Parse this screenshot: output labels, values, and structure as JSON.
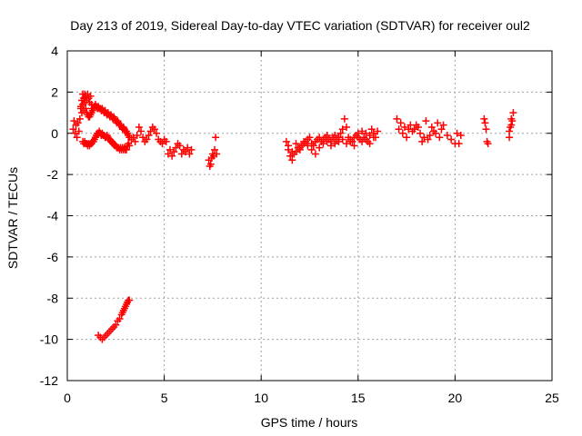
{
  "chart_data": {
    "type": "scatter",
    "title": "Day 213 of 2019, Sidereal Day-to-day VTEC variation (SDTVAR) for receiver oul2",
    "xlabel": "GPS time / hours",
    "ylabel": "SDTVAR / TECUs",
    "xlim": [
      0,
      25
    ],
    "ylim": [
      -12,
      4
    ],
    "xticks": [
      0,
      5,
      10,
      15,
      20,
      25
    ],
    "yticks": [
      4,
      2,
      0,
      -2,
      -4,
      -6,
      -8,
      -10,
      -12
    ],
    "grid": true,
    "marker": "+",
    "color": "#ff0000",
    "series": [
      {
        "name": "SDTVAR",
        "x": [
          0.3,
          0.35,
          0.4,
          0.45,
          0.5,
          0.55,
          0.6,
          0.65,
          0.7,
          0.75,
          0.8,
          0.85,
          0.9,
          0.95,
          1.0,
          1.05,
          1.1,
          1.15,
          1.2,
          1.25,
          1.3,
          0.7,
          0.75,
          0.8,
          0.85,
          0.9,
          0.95,
          1.0,
          1.05,
          1.1,
          1.15,
          1.2,
          1.25,
          1.3,
          1.35,
          1.4,
          1.45,
          1.5,
          1.55,
          1.6,
          1.65,
          1.7,
          1.75,
          1.8,
          1.85,
          1.9,
          1.95,
          2.0,
          2.05,
          2.1,
          2.15,
          2.2,
          2.25,
          2.3,
          2.35,
          2.4,
          2.45,
          2.5,
          2.55,
          2.6,
          2.65,
          2.7,
          2.75,
          2.8,
          2.85,
          2.9,
          2.95,
          3.0,
          3.05,
          3.1,
          3.15,
          3.2,
          0.8,
          0.85,
          0.9,
          0.95,
          1.0,
          1.05,
          1.1,
          1.15,
          1.2,
          1.25,
          1.3,
          1.35,
          1.4,
          1.45,
          1.5,
          1.55,
          1.6,
          1.65,
          1.7,
          1.75,
          1.8,
          1.85,
          1.9,
          1.95,
          2.0,
          2.05,
          2.1,
          2.15,
          2.2,
          2.25,
          2.3,
          2.35,
          2.4,
          2.45,
          2.5,
          2.55,
          2.6,
          2.65,
          2.7,
          2.75,
          2.8,
          2.85,
          2.9,
          2.95,
          3.0,
          3.05,
          3.1,
          3.15,
          3.2,
          3.3,
          3.4,
          3.5,
          3.6,
          3.7,
          3.8,
          3.9,
          4.0,
          4.1,
          4.2,
          4.3,
          4.4,
          4.5,
          4.6,
          4.7,
          4.8,
          4.9,
          5.0,
          5.1,
          5.2,
          5.3,
          5.4,
          5.5,
          5.6,
          5.7,
          5.8,
          5.9,
          6.0,
          6.1,
          6.2,
          6.3,
          6.4,
          7.3,
          7.35,
          7.4,
          7.45,
          7.5,
          7.55,
          7.6,
          7.65,
          7.7,
          1.6,
          1.7,
          1.8,
          1.9,
          2.0,
          2.1,
          2.2,
          2.3,
          2.4,
          2.5,
          2.6,
          2.7,
          2.8,
          2.85,
          2.9,
          2.95,
          3.0,
          3.05,
          3.1,
          3.15,
          3.2,
          11.3,
          11.4,
          11.5,
          11.6,
          11.7,
          11.8,
          11.9,
          12.0,
          12.1,
          12.2,
          12.3,
          12.4,
          12.5,
          12.6,
          12.7,
          12.8,
          12.9,
          13.0,
          13.1,
          13.2,
          13.3,
          13.4,
          13.5,
          13.6,
          13.7,
          13.8,
          13.9,
          14.0,
          14.1,
          14.2,
          14.3,
          14.4,
          14.5,
          14.6,
          14.7,
          14.8,
          14.9,
          15.0,
          15.1,
          15.2,
          15.3,
          15.4,
          15.5,
          15.6,
          15.7,
          15.8,
          15.9,
          16.0,
          11.4,
          11.6,
          11.8,
          12.0,
          12.2,
          12.4,
          12.6,
          12.8,
          13.0,
          13.2,
          13.4,
          13.6,
          13.8,
          14.0,
          14.2,
          14.4,
          14.6,
          14.8,
          15.0,
          15.2,
          15.4,
          15.6,
          15.8,
          17.0,
          17.2,
          17.4,
          17.6,
          17.8,
          18.0,
          18.2,
          18.4,
          18.6,
          18.8,
          19.0,
          19.2,
          19.4,
          19.6,
          19.8,
          20.0,
          20.1,
          20.2,
          20.3,
          17.1,
          17.3,
          17.5,
          17.7,
          17.9,
          18.1,
          18.3,
          18.5,
          18.7,
          18.9,
          19.1,
          19.3,
          21.5,
          21.55,
          21.6,
          21.65,
          21.7,
          22.8,
          22.85,
          22.9,
          22.95,
          23.0,
          22.8,
          22.9
        ],
        "y": [
          0.2,
          0.6,
          0.0,
          0.4,
          -0.2,
          0.5,
          0.1,
          0.7,
          1.2,
          1.6,
          1.9,
          1.7,
          1.9,
          1.8,
          1.6,
          1.9,
          1.7,
          1.5,
          1.8,
          1.4,
          1.2,
          1.3,
          1.0,
          1.4,
          1.1,
          1.5,
          1.2,
          1.0,
          0.9,
          0.8,
          0.8,
          0.9,
          1.0,
          1.1,
          1.2,
          1.3,
          1.4,
          1.3,
          1.2,
          1.3,
          1.2,
          1.2,
          1.1,
          1.2,
          1.1,
          1.0,
          1.1,
          1.0,
          0.9,
          1.0,
          0.9,
          0.8,
          0.9,
          0.8,
          0.7,
          0.8,
          0.7,
          0.6,
          0.5,
          0.6,
          0.5,
          0.4,
          0.4,
          0.3,
          0.2,
          0.3,
          0.2,
          0.1,
          0.1,
          0.0,
          -0.1,
          -0.2,
          -0.4,
          -0.5,
          -0.4,
          -0.5,
          -0.5,
          -0.6,
          -0.5,
          -0.6,
          -0.5,
          -0.5,
          -0.4,
          -0.4,
          -0.3,
          -0.2,
          -0.1,
          0.0,
          0.0,
          0.1,
          0.0,
          -0.1,
          0.0,
          -0.1,
          -0.1,
          -0.2,
          -0.2,
          -0.1,
          -0.2,
          -0.3,
          -0.3,
          -0.4,
          -0.4,
          -0.5,
          -0.5,
          -0.6,
          -0.6,
          -0.7,
          -0.7,
          -0.7,
          -0.8,
          -0.7,
          -0.8,
          -0.7,
          -0.8,
          -0.7,
          -0.8,
          -0.8,
          -0.6,
          -0.5,
          -0.6,
          -0.3,
          -0.2,
          -0.4,
          -0.1,
          0.3,
          0.1,
          -0.2,
          -0.4,
          -0.3,
          -0.1,
          0.1,
          0.3,
          0.2,
          0.0,
          -0.3,
          -0.4,
          -0.5,
          -0.3,
          -0.4,
          -1.0,
          -0.8,
          -1.1,
          -0.9,
          -0.7,
          -0.5,
          -0.6,
          -1.0,
          -0.8,
          -0.9,
          -0.7,
          -1.0,
          -0.8,
          -1.3,
          -1.6,
          -1.5,
          -1.2,
          -1.0,
          -1.1,
          -0.8,
          -0.2,
          -1.0,
          -9.8,
          -9.9,
          -10.0,
          -9.9,
          -9.8,
          -9.7,
          -9.6,
          -9.5,
          -9.4,
          -9.3,
          -9.1,
          -9.0,
          -8.8,
          -8.7,
          -8.6,
          -8.5,
          -8.4,
          -8.3,
          -8.2,
          -8.1,
          -8.1,
          -0.4,
          -0.8,
          -1.1,
          -1.3,
          -1.0,
          -0.9,
          -0.7,
          -0.8,
          -0.6,
          -0.5,
          -0.4,
          -0.3,
          -0.2,
          -0.5,
          -0.6,
          -0.4,
          -0.3,
          -0.2,
          -0.4,
          -0.3,
          -0.2,
          -0.1,
          -0.3,
          -0.4,
          -0.2,
          -0.1,
          -0.3,
          -0.2,
          0.0,
          0.2,
          0.7,
          0.3,
          -0.2,
          -0.3,
          -0.4,
          -0.2,
          -0.1,
          0.0,
          -0.3,
          0.1,
          -0.2,
          0.0,
          -0.4,
          -0.1,
          0.2,
          0.0,
          -0.2,
          0.1,
          -0.6,
          -0.9,
          -0.5,
          -0.7,
          -0.4,
          -0.6,
          -0.8,
          -1.0,
          -0.7,
          -0.5,
          -0.4,
          -0.6,
          -0.5,
          -0.4,
          -0.3,
          -0.5,
          -0.4,
          -0.6,
          -0.2,
          -0.4,
          -0.3,
          -0.5,
          -0.2,
          0.7,
          0.5,
          0.3,
          0.2,
          0.1,
          0.4,
          0.0,
          -0.2,
          -0.3,
          0.3,
          0.0,
          -0.2,
          0.4,
          -0.1,
          -0.3,
          -0.5,
          0.0,
          -0.5,
          -0.1,
          0.2,
          0.0,
          -0.2,
          0.4,
          0.2,
          0.3,
          -0.4,
          0.6,
          -0.1,
          0.1,
          0.5,
          0.2,
          0.7,
          0.5,
          0.2,
          -0.4,
          -0.5,
          0.1,
          0.3,
          0.7,
          0.6,
          1.0,
          -0.2,
          0.4
        ]
      }
    ]
  }
}
